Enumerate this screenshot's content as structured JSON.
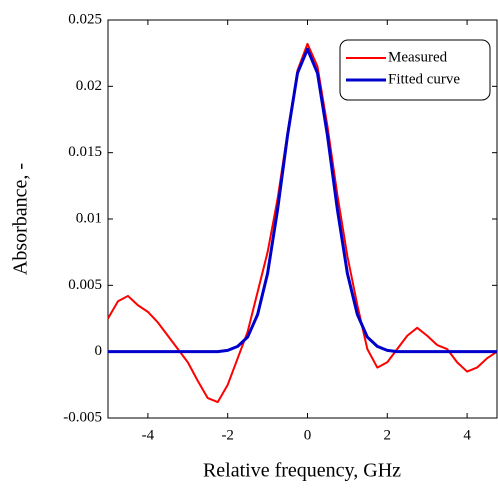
{
  "chart_data": {
    "type": "line",
    "xlabel": "Relative frequency, GHz",
    "ylabel": "Absorbance, -",
    "x": [
      -5,
      -4.75,
      -4.5,
      -4.25,
      -4,
      -3.75,
      -3.5,
      -3.25,
      -3,
      -2.75,
      -2.5,
      -2.25,
      -2,
      -1.75,
      -1.5,
      -1.25,
      -1,
      -0.75,
      -0.5,
      -0.25,
      0,
      0.25,
      0.5,
      0.75,
      1,
      1.25,
      1.5,
      1.75,
      2,
      2.25,
      2.5,
      2.75,
      3,
      3.25,
      3.5,
      3.75,
      4,
      4.25,
      4.5,
      4.75
    ],
    "series": [
      {
        "name": "Measured",
        "color": "#ff0000",
        "values": [
          0.0025,
          0.0038,
          0.0042,
          0.0035,
          0.003,
          0.0022,
          0.0012,
          0.0002,
          -0.0008,
          -0.0022,
          -0.0035,
          -0.0038,
          -0.0025,
          -0.0005,
          0.0015,
          0.0045,
          0.0075,
          0.0115,
          0.0165,
          0.0212,
          0.0232,
          0.0215,
          0.017,
          0.0118,
          0.0072,
          0.0035,
          0.0002,
          -0.0012,
          -0.0008,
          0.0002,
          0.0012,
          0.0018,
          0.0012,
          0.0005,
          0.0002,
          -0.0008,
          -0.0015,
          -0.0012,
          -0.0005,
          0
        ]
      },
      {
        "name": "Fitted curve",
        "color": "#0000cc",
        "values": [
          0,
          0,
          0,
          0,
          0,
          0,
          0,
          0,
          0,
          0,
          0,
          0,
          0.0001,
          0.0004,
          0.0011,
          0.0028,
          0.0059,
          0.0107,
          0.0163,
          0.021,
          0.0228,
          0.021,
          0.0163,
          0.0107,
          0.0059,
          0.0028,
          0.0011,
          0.0004,
          0.0001,
          0,
          0,
          0,
          0,
          0,
          0,
          0,
          0,
          0,
          0,
          0
        ]
      }
    ],
    "xlim": [
      -5,
      4.75
    ],
    "xticks": [
      -4,
      -2,
      0,
      2,
      4
    ],
    "ylim": [
      -0.005,
      0.025
    ],
    "yticks": [
      -0.005,
      0,
      0.005,
      0.01,
      0.015,
      0.02,
      0.025
    ],
    "legend": "upper right"
  }
}
